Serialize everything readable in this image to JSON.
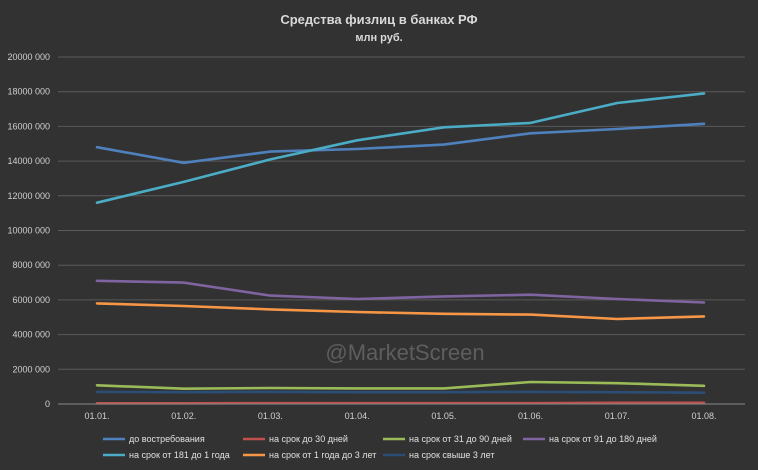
{
  "chart_data": {
    "type": "line",
    "title": "Средства физлиц в банках РФ",
    "subtitle": "млн руб.",
    "watermark": "@MarketScreen",
    "categories": [
      "01.01.",
      "01.02.",
      "01.03.",
      "01.04.",
      "01.05.",
      "01.06.",
      "01.07.",
      "01.08."
    ],
    "ylim": [
      0,
      20000
    ],
    "yticks": [
      0,
      2000,
      4000,
      6000,
      8000,
      10000,
      12000,
      14000,
      16000,
      18000,
      20000
    ],
    "ytick_labels": [
      "0",
      "2000 000",
      "4000 000",
      "6000 000",
      "8000 000",
      "10000 000",
      "12000 000",
      "14000 000",
      "16000 000",
      "18000 000",
      "20000 000"
    ],
    "grid": true,
    "legend_position": "bottom",
    "series": [
      {
        "name": "до востребования",
        "color": "#4f81bd",
        "values": [
          14800,
          13900,
          14550,
          14700,
          14950,
          15600,
          15850,
          16150
        ]
      },
      {
        "name": "на срок до 30 дней",
        "color": "#c0504d",
        "values": [
          40,
          40,
          45,
          45,
          45,
          45,
          70,
          70
        ]
      },
      {
        "name": "на срок от 31 до 90 дней",
        "color": "#9bbb59",
        "values": [
          1080,
          880,
          920,
          900,
          900,
          1270,
          1200,
          1050
        ]
      },
      {
        "name": "на срок от 91 до 180 дней",
        "color": "#8064a2",
        "values": [
          7100,
          7000,
          6250,
          6050,
          6200,
          6300,
          6050,
          5850
        ]
      },
      {
        "name": "на срок от 181 до 1 года",
        "color": "#4bacc6",
        "values": [
          11600,
          12800,
          14100,
          15200,
          15950,
          16200,
          17350,
          17900
        ]
      },
      {
        "name": "на срок от 1 года до 3 лет",
        "color": "#f79646",
        "values": [
          5800,
          5650,
          5450,
          5300,
          5200,
          5150,
          4900,
          5050
        ]
      },
      {
        "name": "на срок свыше 3 лет",
        "color": "#2c4d75",
        "values": [
          700,
          680,
          700,
          680,
          680,
          700,
          680,
          650
        ]
      }
    ]
  }
}
